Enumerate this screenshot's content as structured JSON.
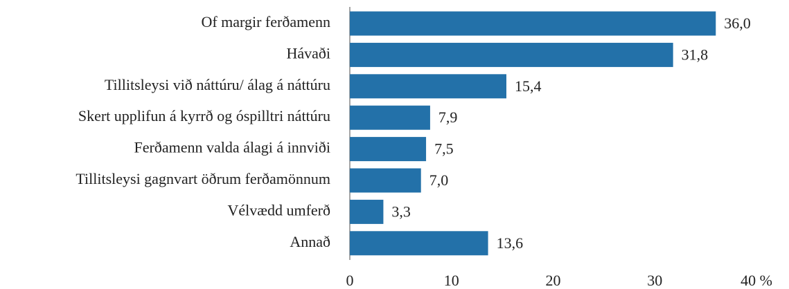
{
  "chart_data": {
    "type": "barh",
    "categories": [
      "Of margir ferðamenn",
      "Hávaði",
      "Tillitsleysi við náttúru/ álag á náttúru",
      "Skert upplifun á kyrrð og óspilltri náttúru",
      "Ferðamenn valda álagi á innviði",
      "Tillitsleysi gagnvart öðrum ferðamönnum",
      "Vélvædd umferð",
      "Annað"
    ],
    "values": [
      36.0,
      31.8,
      15.4,
      7.9,
      7.5,
      7.0,
      3.3,
      13.6
    ],
    "value_labels": [
      "36,0",
      "31,8",
      "15,4",
      "7,9",
      "7,5",
      "7,0",
      "3,3",
      "13,6"
    ],
    "color": "#2371a9",
    "xlim": [
      0,
      40
    ],
    "xticks": [
      0,
      10,
      20,
      30,
      {
        "value": 40,
        "label": "40 %"
      }
    ]
  }
}
